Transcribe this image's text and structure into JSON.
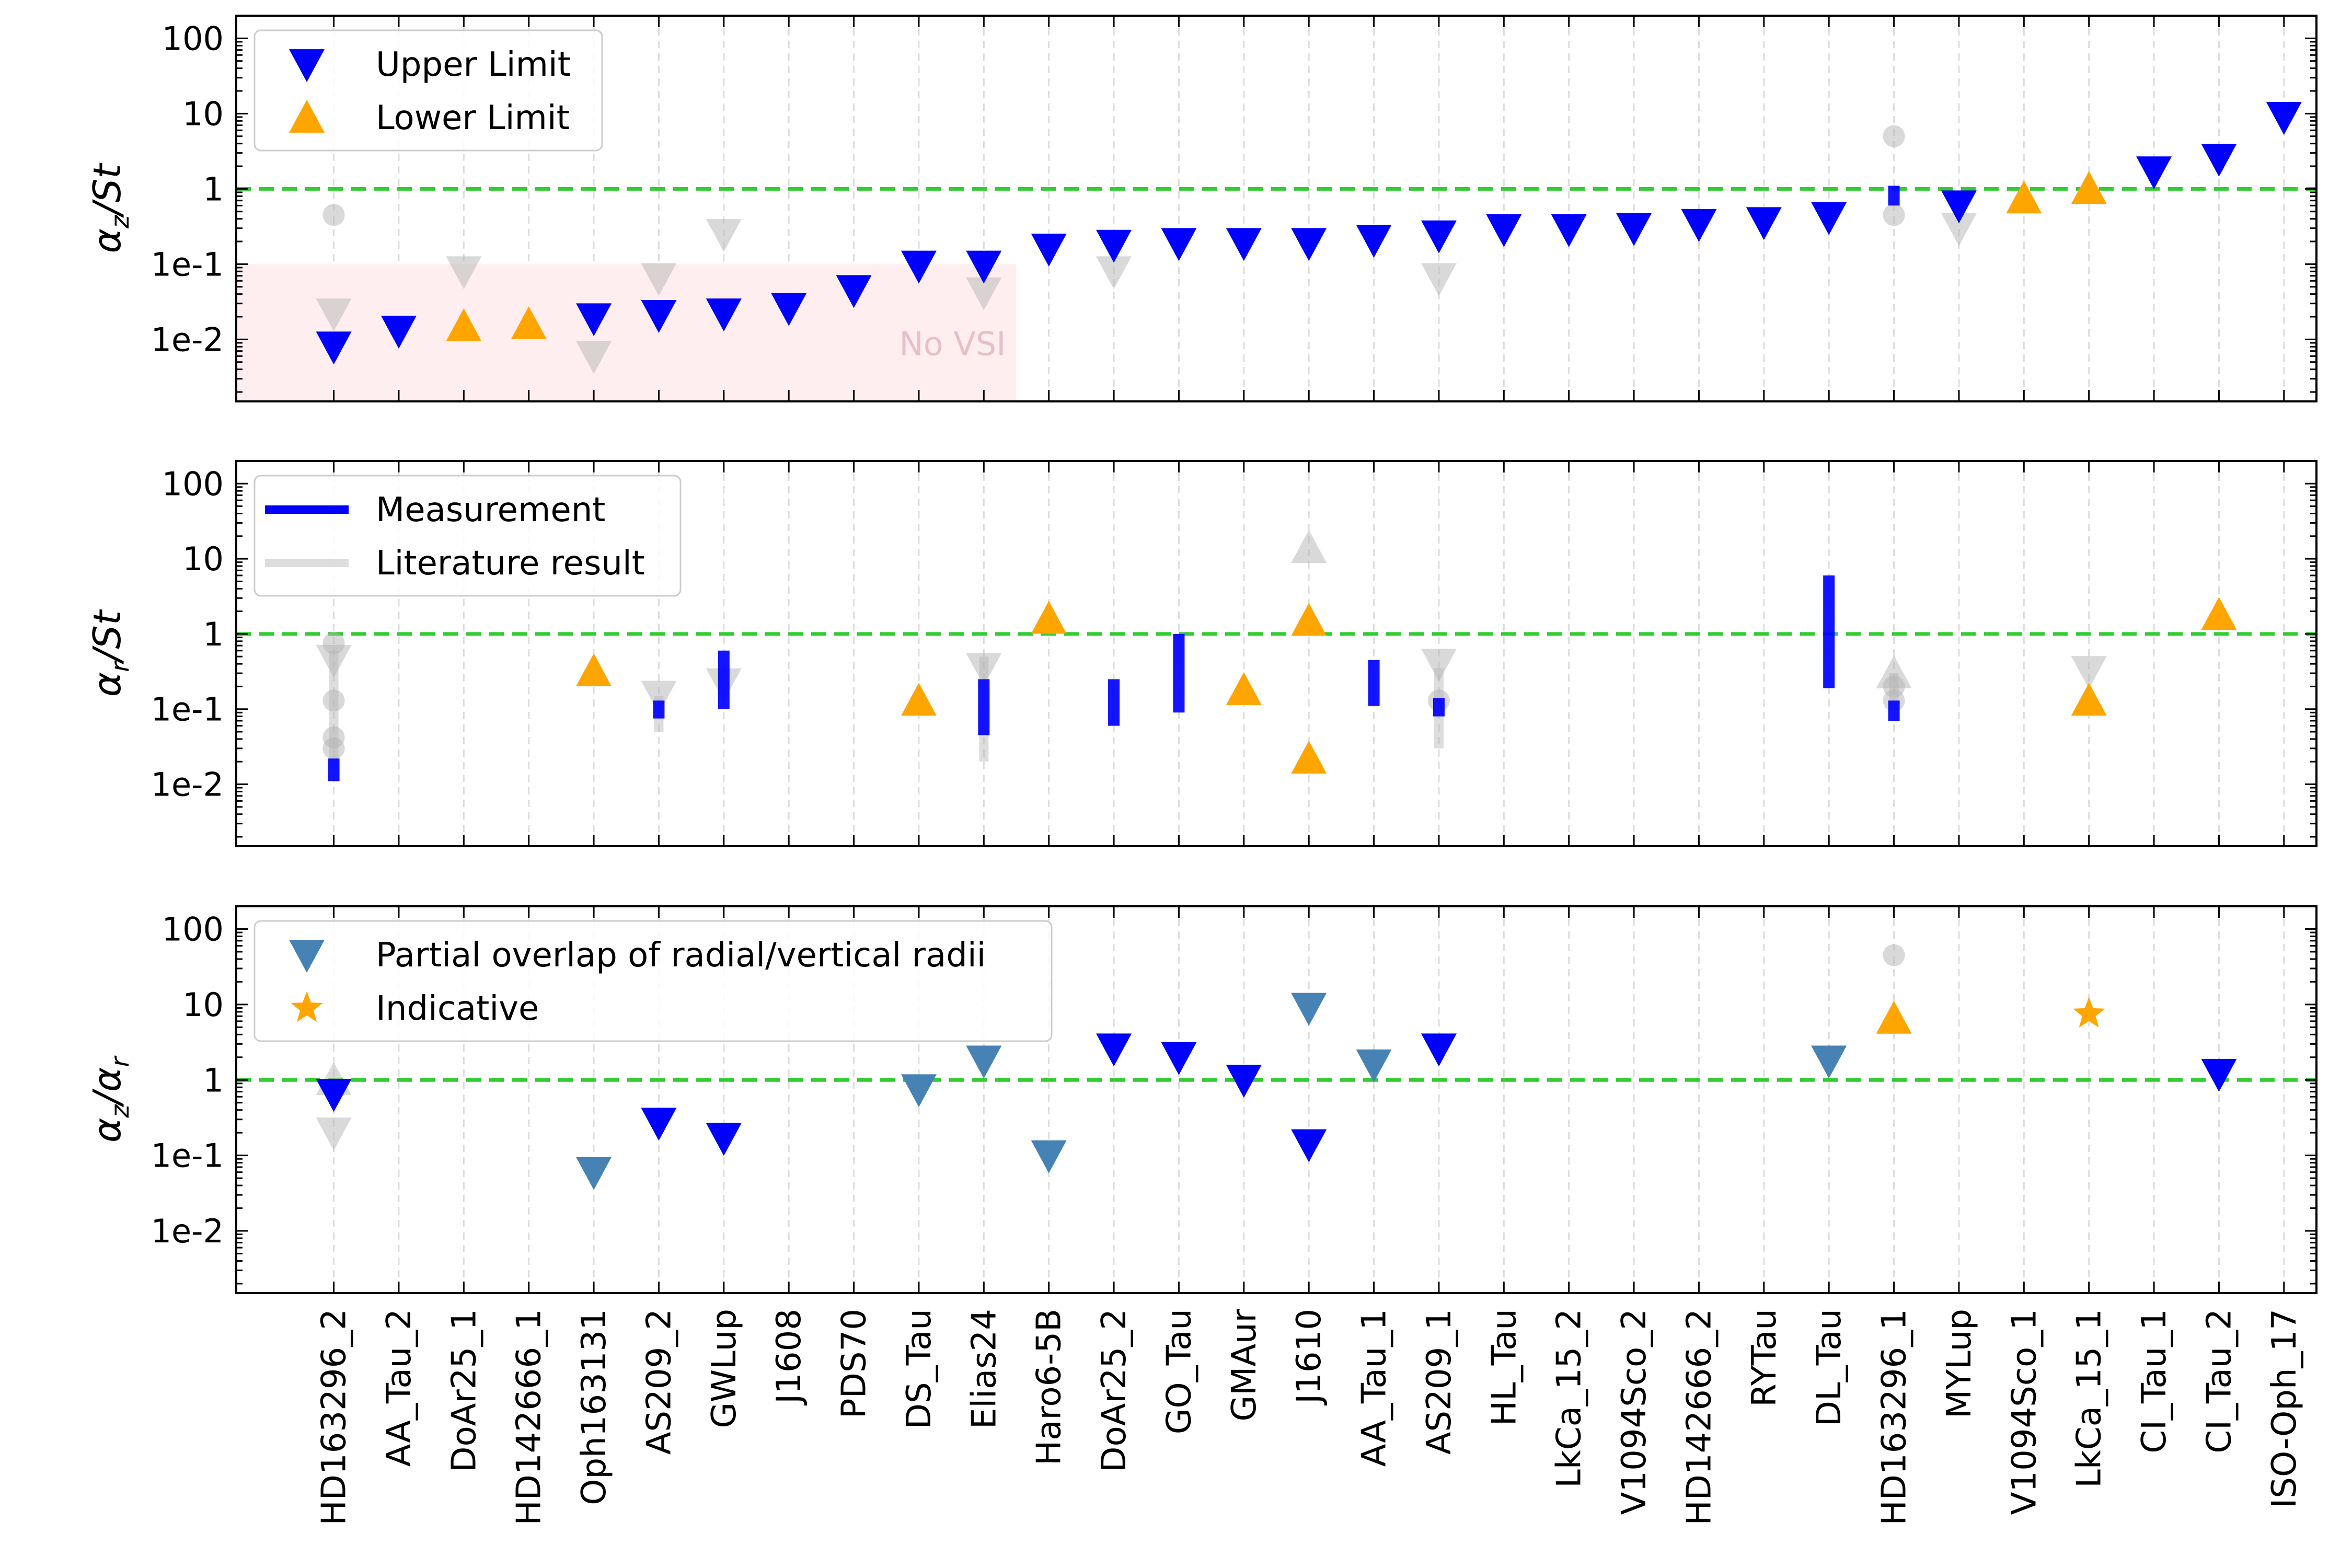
{
  "chart_data": {
    "type": "scatter",
    "yscale": "log",
    "categories": [
      "HD163296_2",
      "AA_Tau_2",
      "DoAr25_1",
      "HD142666_1",
      "Oph163131",
      "AS209_2",
      "GWLup",
      "J1608",
      "PDS70",
      "DS_Tau",
      "Elias24",
      "Haro6-5B",
      "DoAr25_2",
      "GO_Tau",
      "GMAur",
      "J1610",
      "AA_Tau_1",
      "AS209_1",
      "HL_Tau",
      "LkCa_15_2",
      "V1094Sco_2",
      "HD142666_2",
      "RYTau",
      "DL_Tau",
      "HD163296_1",
      "MYLup",
      "V1094Sco_1",
      "LkCa_15_1",
      "CI_Tau_1",
      "CI_Tau_2",
      "ISO-Oph_17"
    ],
    "reference_line": {
      "y": 1,
      "color": "#33cc33",
      "style": "dashed"
    },
    "colors": {
      "measurement": "#0000ff",
      "limit": "#0000ff",
      "lower": "#ffa500",
      "partial": "#4682b4",
      "literature": "#b4b4b4",
      "novsi_fill": "#ffeef0",
      "novsi_text": "#e8c0c4"
    },
    "panels": [
      {
        "ylabel_main": "α",
        "ylabel_sub": "z",
        "ylabel_rest": "/St",
        "ylim": [
          0.0015,
          200
        ],
        "ticks": [
          {
            "v": 0.01,
            "label": "1e-2"
          },
          {
            "v": 0.1,
            "label": "1e-1"
          },
          {
            "v": 1,
            "label": "1"
          },
          {
            "v": 10,
            "label": "10"
          },
          {
            "v": 100,
            "label": "100"
          }
        ],
        "legend": [
          {
            "label": "Upper Limit",
            "marker": "tri-down",
            "color": "#0000ff"
          },
          {
            "label": "Lower Limit",
            "marker": "tri-up",
            "color": "#ffa500"
          }
        ],
        "shaded": {
          "x_from": -1.5,
          "x_to": 10.5,
          "y_from": 0.0015,
          "y_to": 0.1,
          "label": "No VSI"
        },
        "lit": [
          {
            "x": 0,
            "y": 0.45,
            "m": "circle"
          },
          {
            "x": 0,
            "y": 0.022,
            "m": "tri-down"
          },
          {
            "x": 2,
            "y": 0.08,
            "m": "tri-down"
          },
          {
            "x": 4,
            "y": 0.006,
            "m": "tri-down"
          },
          {
            "x": 5,
            "y": 0.065,
            "m": "tri-down"
          },
          {
            "x": 6,
            "y": 0.25,
            "m": "tri-down"
          },
          {
            "x": 10,
            "y": 0.042,
            "m": "tri-down"
          },
          {
            "x": 12,
            "y": 0.08,
            "m": "tri-down"
          },
          {
            "x": 17,
            "y": 0.065,
            "m": "tri-down"
          },
          {
            "x": 24,
            "y": 5,
            "m": "circle"
          },
          {
            "x": 24,
            "y": 0.45,
            "m": "circle"
          },
          {
            "x": 25,
            "y": 0.3,
            "m": "tri-down"
          }
        ],
        "points": [
          {
            "x": 0,
            "y": 0.008,
            "m": "tri-down",
            "c": "limit"
          },
          {
            "x": 1,
            "y": 0.013,
            "m": "tri-down",
            "c": "limit"
          },
          {
            "x": 2,
            "y": 0.015,
            "m": "tri-up",
            "c": "lower"
          },
          {
            "x": 3,
            "y": 0.016,
            "m": "tri-up",
            "c": "lower"
          },
          {
            "x": 4,
            "y": 0.019,
            "m": "tri-down",
            "c": "limit"
          },
          {
            "x": 5,
            "y": 0.021,
            "m": "tri-down",
            "c": "limit"
          },
          {
            "x": 6,
            "y": 0.022,
            "m": "tri-down",
            "c": "limit"
          },
          {
            "x": 7,
            "y": 0.026,
            "m": "tri-down",
            "c": "limit"
          },
          {
            "x": 8,
            "y": 0.045,
            "m": "tri-down",
            "c": "limit"
          },
          {
            "x": 9,
            "y": 0.095,
            "m": "tri-down",
            "c": "limit"
          },
          {
            "x": 10,
            "y": 0.095,
            "m": "tri-down",
            "c": "limit"
          },
          {
            "x": 11,
            "y": 0.16,
            "m": "tri-down",
            "c": "limit"
          },
          {
            "x": 12,
            "y": 0.18,
            "m": "tri-down",
            "c": "limit"
          },
          {
            "x": 13,
            "y": 0.19,
            "m": "tri-down",
            "c": "limit"
          },
          {
            "x": 14,
            "y": 0.19,
            "m": "tri-down",
            "c": "limit"
          },
          {
            "x": 15,
            "y": 0.19,
            "m": "tri-down",
            "c": "limit"
          },
          {
            "x": 16,
            "y": 0.21,
            "m": "tri-down",
            "c": "limit"
          },
          {
            "x": 17,
            "y": 0.24,
            "m": "tri-down",
            "c": "limit"
          },
          {
            "x": 18,
            "y": 0.29,
            "m": "tri-down",
            "c": "limit"
          },
          {
            "x": 19,
            "y": 0.29,
            "m": "tri-down",
            "c": "limit"
          },
          {
            "x": 20,
            "y": 0.3,
            "m": "tri-down",
            "c": "limit"
          },
          {
            "x": 21,
            "y": 0.34,
            "m": "tri-down",
            "c": "limit"
          },
          {
            "x": 22,
            "y": 0.36,
            "m": "tri-down",
            "c": "limit"
          },
          {
            "x": 23,
            "y": 0.42,
            "m": "tri-down",
            "c": "limit"
          },
          {
            "x": 25,
            "y": 0.6,
            "m": "tri-down",
            "c": "limit"
          },
          {
            "x": 26,
            "y": 0.75,
            "m": "tri-up",
            "c": "lower"
          },
          {
            "x": 27,
            "y": 1.0,
            "m": "tri-up",
            "c": "lower"
          },
          {
            "x": 28,
            "y": 1.7,
            "m": "tri-down",
            "c": "limit"
          },
          {
            "x": 29,
            "y": 2.5,
            "m": "tri-down",
            "c": "limit"
          },
          {
            "x": 30,
            "y": 9,
            "m": "tri-down",
            "c": "limit"
          }
        ],
        "bars": [
          {
            "x": 24,
            "lo": 0.6,
            "hi": 1.1,
            "c": "measurement"
          }
        ]
      },
      {
        "ylabel_main": "α",
        "ylabel_sub": "r",
        "ylabel_rest": "/St",
        "ylim": [
          0.0015,
          200
        ],
        "ticks": [
          {
            "v": 0.01,
            "label": "1e-2"
          },
          {
            "v": 0.1,
            "label": "1e-1"
          },
          {
            "v": 1,
            "label": "1"
          },
          {
            "v": 10,
            "label": "10"
          },
          {
            "v": 100,
            "label": "100"
          }
        ],
        "legend": [
          {
            "label": "Measurement",
            "marker": "line",
            "color": "#0000ff"
          },
          {
            "label": "Literature result",
            "marker": "line",
            "color": "#dddddd"
          }
        ],
        "lit": [
          {
            "x": 0,
            "y": 0.75,
            "m": "circle"
          },
          {
            "x": 0,
            "y": 0.45,
            "m": "tri-down"
          },
          {
            "x": 0,
            "y": 0.13,
            "m": "circle"
          },
          {
            "x": 0,
            "y": 0.042,
            "m": "circle"
          },
          {
            "x": 0,
            "y": 0.03,
            "m": "circle"
          },
          {
            "x": 5,
            "y": 0.15,
            "m": "tri-down"
          },
          {
            "x": 6,
            "y": 0.22,
            "m": "tri-down"
          },
          {
            "x": 10,
            "y": 0.35,
            "m": "tri-down"
          },
          {
            "x": 15,
            "y": 14,
            "m": "tri-up"
          },
          {
            "x": 17,
            "y": 0.4,
            "m": "tri-down"
          },
          {
            "x": 17,
            "y": 0.13,
            "m": "circle"
          },
          {
            "x": 24,
            "y": 0.3,
            "m": "tri-up"
          },
          {
            "x": 24,
            "y": 0.2,
            "m": "circle"
          },
          {
            "x": 24,
            "y": 0.13,
            "m": "circle"
          },
          {
            "x": 27,
            "y": 0.32,
            "m": "tri-down"
          }
        ],
        "lit_bars": [
          {
            "x": 0,
            "lo": 0.015,
            "hi": 0.6
          },
          {
            "x": 5,
            "lo": 0.05,
            "hi": 0.15
          },
          {
            "x": 10,
            "lo": 0.02,
            "hi": 0.5
          },
          {
            "x": 13,
            "lo": 0.4,
            "hi": 1.0
          },
          {
            "x": 17,
            "lo": 0.03,
            "hi": 0.35
          },
          {
            "x": 24,
            "lo": 0.1,
            "hi": 0.3
          }
        ],
        "points": [
          {
            "x": 4,
            "y": 0.32,
            "m": "tri-up",
            "c": "lower"
          },
          {
            "x": 9,
            "y": 0.13,
            "m": "tri-up",
            "c": "lower"
          },
          {
            "x": 11,
            "y": 1.6,
            "m": "tri-up",
            "c": "lower"
          },
          {
            "x": 14,
            "y": 0.18,
            "m": "tri-up",
            "c": "lower"
          },
          {
            "x": 15,
            "y": 1.5,
            "m": "tri-up",
            "c": "lower"
          },
          {
            "x": 15,
            "y": 0.022,
            "m": "tri-up",
            "c": "lower"
          },
          {
            "x": 27,
            "y": 0.13,
            "m": "tri-up",
            "c": "lower"
          },
          {
            "x": 29,
            "y": 1.8,
            "m": "tri-up",
            "c": "lower"
          }
        ],
        "bars": [
          {
            "x": 0,
            "lo": 0.011,
            "hi": 0.022,
            "c": "measurement"
          },
          {
            "x": 5,
            "lo": 0.075,
            "hi": 0.13,
            "c": "measurement"
          },
          {
            "x": 6,
            "lo": 0.1,
            "hi": 0.6,
            "c": "measurement"
          },
          {
            "x": 10,
            "lo": 0.045,
            "hi": 0.25,
            "c": "measurement"
          },
          {
            "x": 12,
            "lo": 0.06,
            "hi": 0.25,
            "c": "measurement"
          },
          {
            "x": 13,
            "lo": 0.09,
            "hi": 1.0,
            "c": "measurement"
          },
          {
            "x": 16,
            "lo": 0.11,
            "hi": 0.45,
            "c": "measurement"
          },
          {
            "x": 17,
            "lo": 0.08,
            "hi": 0.14,
            "c": "measurement"
          },
          {
            "x": 23,
            "lo": 0.19,
            "hi": 6,
            "c": "measurement"
          },
          {
            "x": 24,
            "lo": 0.07,
            "hi": 0.13,
            "c": "measurement"
          }
        ]
      },
      {
        "ylabel_main": "α",
        "ylabel_sub": "z",
        "ylabel_rest": "/α",
        "ylabel_sub2": "r",
        "ylim": [
          0.0015,
          200
        ],
        "ticks": [
          {
            "v": 0.01,
            "label": "1e-2"
          },
          {
            "v": 0.1,
            "label": "1e-1"
          },
          {
            "v": 1,
            "label": "1"
          },
          {
            "v": 10,
            "label": "10"
          },
          {
            "v": 100,
            "label": "100"
          }
        ],
        "legend": [
          {
            "label": "Partial overlap of radial/vertical radii",
            "marker": "tri-down",
            "color": "#4682b4"
          },
          {
            "label": "Indicative",
            "marker": "star",
            "color": "#ffa500"
          }
        ],
        "lit": [
          {
            "x": 0,
            "y": 1.0,
            "m": "tri-up"
          },
          {
            "x": 0,
            "y": 0.2,
            "m": "tri-down"
          },
          {
            "x": 24,
            "y": 45,
            "m": "circle"
          }
        ],
        "points": [
          {
            "x": 0,
            "y": 0.65,
            "m": "tri-down",
            "c": "limit"
          },
          {
            "x": 4,
            "y": 0.06,
            "m": "tri-down",
            "c": "partial"
          },
          {
            "x": 5,
            "y": 0.27,
            "m": "tri-down",
            "c": "limit"
          },
          {
            "x": 6,
            "y": 0.17,
            "m": "tri-down",
            "c": "limit"
          },
          {
            "x": 9,
            "y": 0.75,
            "m": "tri-down",
            "c": "partial"
          },
          {
            "x": 10,
            "y": 1.8,
            "m": "tri-down",
            "c": "partial"
          },
          {
            "x": 11,
            "y": 0.1,
            "m": "tri-down",
            "c": "partial"
          },
          {
            "x": 12,
            "y": 2.6,
            "m": "tri-down",
            "c": "limit"
          },
          {
            "x": 13,
            "y": 2.0,
            "m": "tri-down",
            "c": "limit"
          },
          {
            "x": 14,
            "y": 1.0,
            "m": "tri-down",
            "c": "limit"
          },
          {
            "x": 15,
            "y": 9,
            "m": "tri-down",
            "c": "partial"
          },
          {
            "x": 15,
            "y": 0.14,
            "m": "tri-down",
            "c": "limit"
          },
          {
            "x": 16,
            "y": 1.6,
            "m": "tri-down",
            "c": "partial"
          },
          {
            "x": 17,
            "y": 2.6,
            "m": "tri-down",
            "c": "limit"
          },
          {
            "x": 23,
            "y": 1.8,
            "m": "tri-down",
            "c": "partial"
          },
          {
            "x": 24,
            "y": 6.5,
            "m": "tri-up",
            "c": "lower"
          },
          {
            "x": 27,
            "y": 7.5,
            "m": "star",
            "c": "lower"
          },
          {
            "x": 29,
            "y": 1.2,
            "m": "tri-down",
            "c": "limit"
          }
        ],
        "bars": []
      }
    ]
  }
}
